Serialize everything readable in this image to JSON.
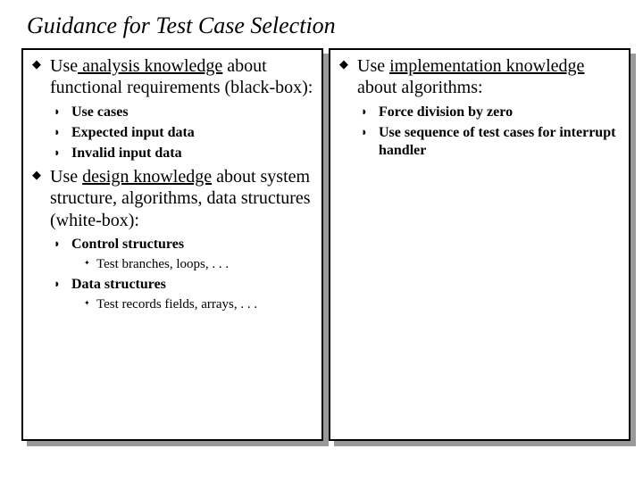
{
  "title": "Guidance for Test Case Selection",
  "left": {
    "item1": {
      "pre": "Use",
      "u": " analysis  knowledge",
      "post": " about functional requirements (black-box):",
      "sub": {
        "a": "Use cases",
        "b": "Expected input data",
        "c": "Invalid input data"
      }
    },
    "item2": {
      "pre": "Use ",
      "u": "design  knowledge",
      "post": " about system structure, algorithms, data structures  (white-box):",
      "sub": {
        "a": "Control structures",
        "a1": "Test branches, loops, . . .",
        "b": "Data structures",
        "b1": "Test records fields, arrays, . . ."
      }
    }
  },
  "right": {
    "item1": {
      "pre": "Use ",
      "u": "implementation  knowledge",
      "post": " about algorithms:",
      "sub": {
        "a": "Force division by zero",
        "b": "Use sequence of test cases for interrupt handler"
      }
    }
  },
  "colors": {
    "text": "#000000",
    "bg": "#ffffff",
    "shadow": "#9a9a9a",
    "border": "#000000"
  },
  "fontsizes": {
    "title": 26,
    "lvl1": 20,
    "lvl2": 16,
    "lvl3": 15
  }
}
